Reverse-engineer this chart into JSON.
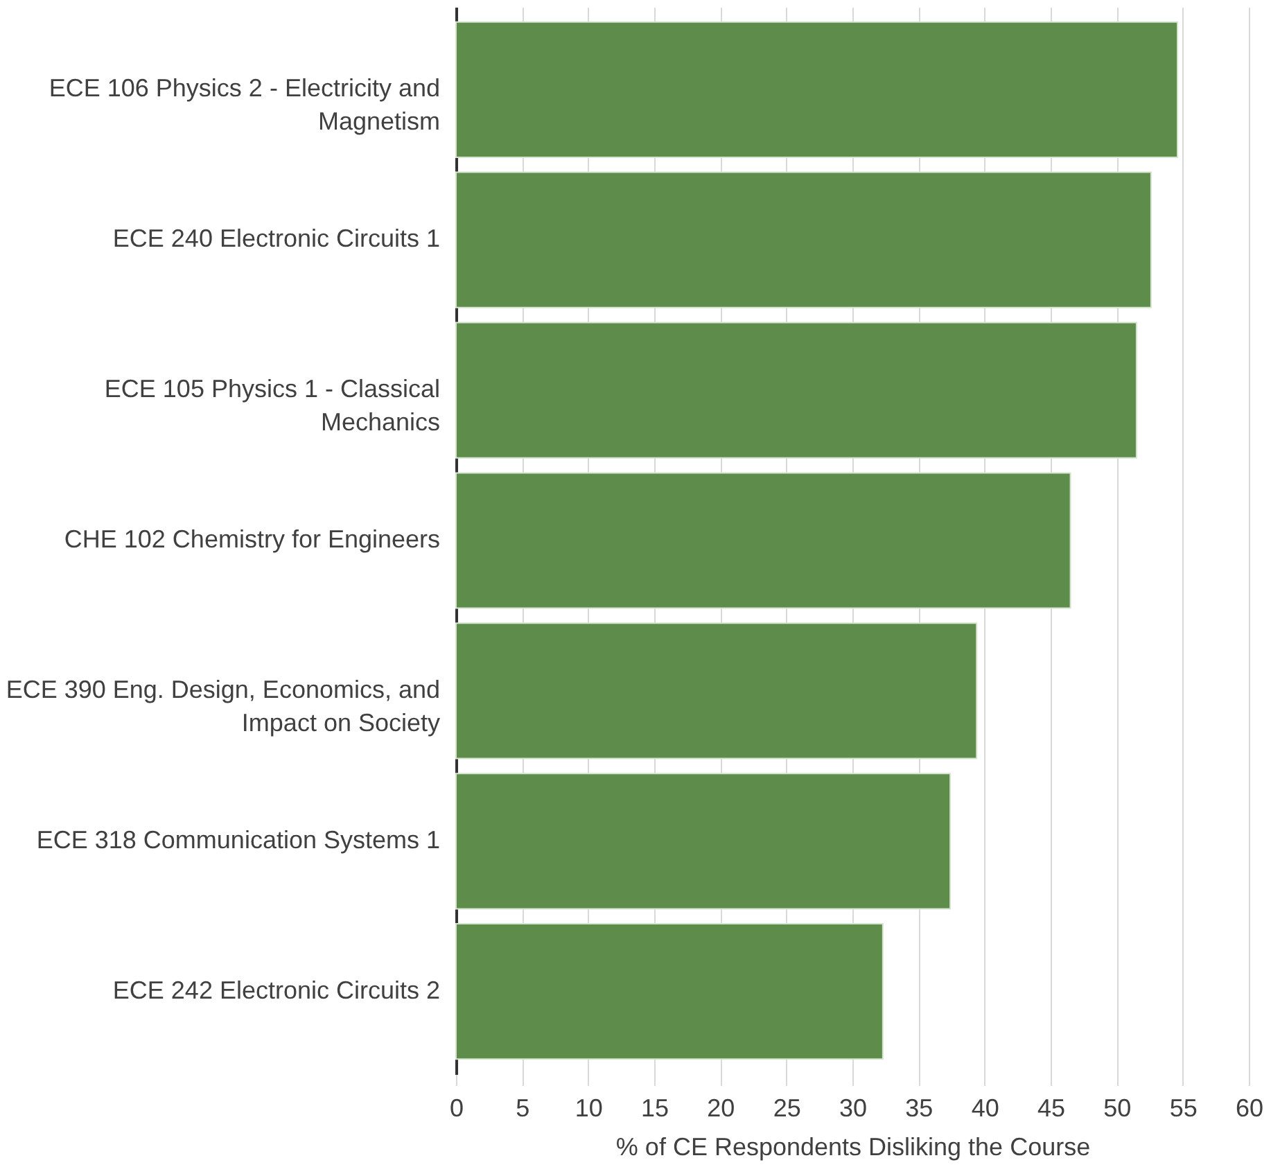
{
  "chart_data": {
    "type": "bar",
    "orientation": "horizontal",
    "xlabel": "% of CE Respondents Disliking the Course",
    "categories": [
      "ECE 106 Physics 2 - Electricity and Magnetism",
      "ECE 240 Electronic Circuits 1",
      "ECE 105 Physics 1 - Classical Mechanics",
      "CHE 102 Chemistry for Engineers",
      "ECE 390 Eng. Design, Economics, and Impact on Society",
      "ECE 318 Communication Systems 1",
      "ECE 242 Electronic Circuits 2"
    ],
    "values": [
      54.6,
      52.6,
      51.5,
      46.5,
      39.4,
      37.4,
      32.3
    ],
    "color": "#5e8c4b",
    "xlim": [
      0,
      60
    ],
    "xticks": [
      0,
      5,
      10,
      15,
      20,
      25,
      30,
      35,
      40,
      45,
      50,
      55,
      60
    ],
    "grid": "x"
  }
}
